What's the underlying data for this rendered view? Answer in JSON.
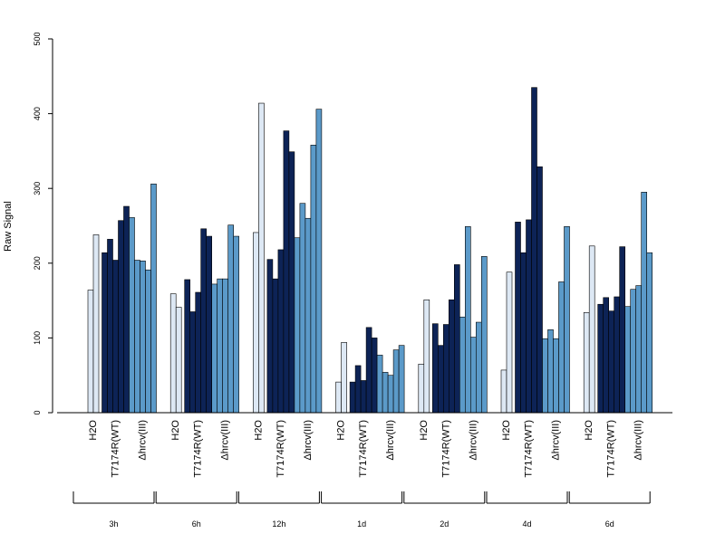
{
  "chart_data": {
    "type": "bar",
    "title": "",
    "xlabel": "",
    "ylabel": "Raw Signal",
    "ylim": [
      0,
      500
    ],
    "yticks": [
      0,
      100,
      200,
      300,
      400,
      500
    ],
    "legend": "none",
    "grid": false,
    "colors": {
      "H2O": "#dde8f4",
      "T7174R(WT)": "#0d2356",
      "Δhrcv(III)": "#5b9ac9"
    },
    "categories": [
      "H2O",
      "T7174R(WT)",
      "Δhrcv(III)"
    ],
    "timepoints": [
      {
        "label": "3h",
        "groups": [
          {
            "name": "H2O",
            "values": [
              164,
              238
            ]
          },
          {
            "name": "T7174R(WT)",
            "values": [
              214,
              232,
              204,
              257,
              276
            ]
          },
          {
            "name": "Δhrcv(III)",
            "values": [
              261,
              204,
              203,
              191,
              306
            ]
          }
        ]
      },
      {
        "label": "6h",
        "groups": [
          {
            "name": "H2O",
            "values": [
              159,
              141
            ]
          },
          {
            "name": "T7174R(WT)",
            "values": [
              178,
              135,
              161,
              246,
              236
            ]
          },
          {
            "name": "Δhrcv(III)",
            "values": [
              172,
              179,
              179,
              251,
              236
            ]
          }
        ]
      },
      {
        "label": "12h",
        "groups": [
          {
            "name": "H2O",
            "values": [
              241,
              414
            ]
          },
          {
            "name": "T7174R(WT)",
            "values": [
              205,
              179,
              218,
              377,
              349
            ]
          },
          {
            "name": "Δhrcv(III)",
            "values": [
              234,
              280,
              260,
              358,
              406
            ]
          }
        ]
      },
      {
        "label": "1d",
        "groups": [
          {
            "name": "H2O",
            "values": [
              41,
              94
            ]
          },
          {
            "name": "T7174R(WT)",
            "values": [
              41,
              63,
              43,
              114,
              100
            ]
          },
          {
            "name": "Δhrcv(III)",
            "values": [
              77,
              54,
              50,
              84,
              90
            ]
          }
        ]
      },
      {
        "label": "2d",
        "groups": [
          {
            "name": "H2O",
            "values": [
              65,
              151
            ]
          },
          {
            "name": "T7174R(WT)",
            "values": [
              119,
              90,
              118,
              151,
              198
            ]
          },
          {
            "name": "Δhrcv(III)",
            "values": [
              128,
              249,
              101,
              121,
              209
            ]
          }
        ]
      },
      {
        "label": "4d",
        "groups": [
          {
            "name": "H2O",
            "values": [
              57,
              188
            ]
          },
          {
            "name": "T7174R(WT)",
            "values": [
              255,
              214,
              258,
              435,
              329
            ]
          },
          {
            "name": "Δhrcv(III)",
            "values": [
              99,
              111,
              99,
              175,
              249
            ]
          }
        ]
      },
      {
        "label": "6d",
        "groups": [
          {
            "name": "H2O",
            "values": [
              134,
              223
            ]
          },
          {
            "name": "T7174R(WT)",
            "values": [
              145,
              154,
              136,
              155,
              222
            ]
          },
          {
            "name": "Δhrcv(III)",
            "values": [
              142,
              165,
              170,
              295,
              214
            ]
          }
        ]
      }
    ]
  }
}
